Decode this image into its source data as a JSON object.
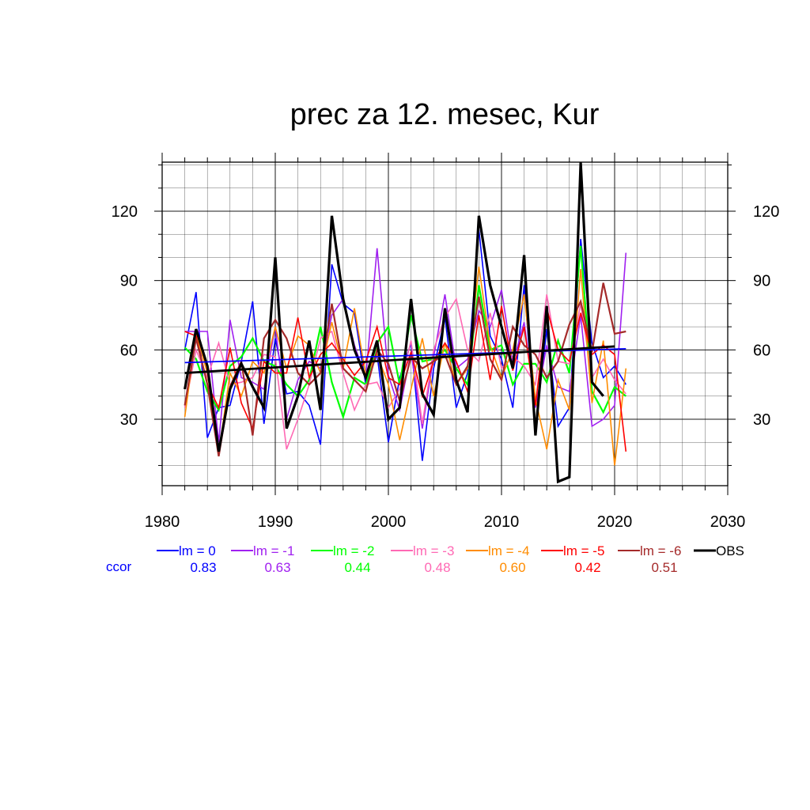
{
  "chart_data": {
    "type": "line",
    "title": "prec za 12. mesec, Kur",
    "xlabel": "",
    "ylabel": "",
    "xlim": [
      1980,
      2030
    ],
    "ylim": [
      2,
      145
    ],
    "x_ticks": [
      1980,
      1990,
      2000,
      2010,
      2020,
      2030
    ],
    "y_ticks": [
      30,
      60,
      90,
      120
    ],
    "grid": true,
    "legend_position": "bottom",
    "ccor_label": "ccor",
    "series": [
      {
        "name": "lm = 0",
        "color": "#0000ff",
        "ccor": "0.83",
        "width": 1.6,
        "x": [
          1982,
          1983,
          1984,
          1985,
          1986,
          1987,
          1988,
          1989,
          1990,
          1991,
          1992,
          1993,
          1994,
          1995,
          1996,
          1997,
          1998,
          1999,
          2000,
          2001,
          2002,
          2003,
          2004,
          2005,
          2006,
          2007,
          2008,
          2009,
          2010,
          2011,
          2012,
          2013,
          2014,
          2015,
          2016,
          2017,
          2018,
          2019,
          2020,
          2021
        ],
        "y": [
          60,
          85,
          22,
          35,
          36,
          55,
          81,
          28,
          65,
          41,
          42,
          36,
          19,
          97,
          80,
          76,
          45,
          58,
          20,
          48,
          63,
          12,
          52,
          74,
          35,
          50,
          112,
          66,
          56,
          35,
          88,
          26,
          69,
          27,
          35,
          108,
          63,
          48,
          53,
          45
        ]
      },
      {
        "name": "lm = -1",
        "color": "#a020f0",
        "ccor": "0.63",
        "width": 1.6,
        "x": [
          1982,
          1983,
          1984,
          1985,
          1986,
          1987,
          1988,
          1989,
          1990,
          1991,
          1992,
          1993,
          1994,
          1995,
          1996,
          1997,
          1998,
          1999,
          2000,
          2001,
          2002,
          2003,
          2004,
          2005,
          2006,
          2007,
          2008,
          2009,
          2010,
          2011,
          2012,
          2013,
          2014,
          2015,
          2016,
          2017,
          2018,
          2019,
          2020,
          2021
        ],
        "y": [
          68,
          68,
          68,
          20,
          73,
          48,
          46,
          43,
          70,
          30,
          47,
          55,
          52,
          75,
          82,
          62,
          48,
          104,
          49,
          34,
          59,
          26,
          57,
          84,
          52,
          56,
          77,
          70,
          86,
          54,
          72,
          35,
          62,
          44,
          42,
          75,
          27,
          30,
          36,
          102
        ]
      },
      {
        "name": "lm = -2",
        "color": "#00ff00",
        "ccor": "0.44",
        "width": 2.2,
        "x": [
          1982,
          1983,
          1984,
          1985,
          1986,
          1987,
          1988,
          1989,
          1990,
          1991,
          1992,
          1993,
          1994,
          1995,
          1996,
          1997,
          1998,
          1999,
          2000,
          2001,
          2002,
          2003,
          2004,
          2005,
          2006,
          2007,
          2008,
          2009,
          2010,
          2011,
          2012,
          2013,
          2014,
          2015,
          2016,
          2017,
          2018,
          2019,
          2020,
          2021
        ],
        "y": [
          61,
          56,
          42,
          34,
          53,
          57,
          65,
          55,
          53,
          45,
          40,
          47,
          70,
          46,
          31,
          48,
          45,
          63,
          70,
          45,
          75,
          55,
          56,
          60,
          52,
          45,
          88,
          60,
          62,
          45,
          54,
          54,
          46,
          64,
          50,
          105,
          42,
          33,
          44,
          40
        ]
      },
      {
        "name": "lm = -3",
        "color": "#ff69b4",
        "ccor": "0.48",
        "width": 1.6,
        "x": [
          1982,
          1983,
          1984,
          1985,
          1986,
          1987,
          1988,
          1989,
          1990,
          1991,
          1992,
          1993,
          1994,
          1995,
          1996,
          1997,
          1998,
          1999,
          2000,
          2001,
          2002,
          2003,
          2004,
          2005,
          2006,
          2007,
          2008,
          2009,
          2010,
          2011,
          2012,
          2013,
          2014,
          2015,
          2016,
          2017,
          2018,
          2019,
          2020,
          2021
        ],
        "y": [
          35,
          60,
          48,
          63,
          45,
          46,
          48,
          58,
          57,
          17,
          30,
          45,
          65,
          68,
          50,
          34,
          45,
          46,
          35,
          43,
          64,
          28,
          60,
          74,
          82,
          60,
          55,
          76,
          52,
          57,
          53,
          45,
          84,
          55,
          54,
          80,
          48,
          56,
          47,
          41
        ]
      },
      {
        "name": "lm = -4",
        "color": "#ff8c00",
        "ccor": "0.60",
        "width": 1.6,
        "x": [
          1982,
          1983,
          1984,
          1985,
          1986,
          1987,
          1988,
          1989,
          1990,
          1991,
          1992,
          1993,
          1994,
          1995,
          1996,
          1997,
          1998,
          1999,
          2000,
          2001,
          2002,
          2003,
          2004,
          2005,
          2006,
          2007,
          2008,
          2009,
          2010,
          2011,
          2012,
          2013,
          2014,
          2015,
          2016,
          2017,
          2018,
          2019,
          2020,
          2021
        ],
        "y": [
          31,
          67,
          50,
          15,
          50,
          40,
          55,
          50,
          70,
          52,
          66,
          62,
          50,
          72,
          52,
          78,
          49,
          58,
          45,
          21,
          43,
          65,
          40,
          63,
          45,
          52,
          96,
          62,
          48,
          60,
          84,
          39,
          17,
          47,
          34,
          95,
          37,
          64,
          10,
          52
        ]
      },
      {
        "name": "lm = -5",
        "color": "#ff0000",
        "ccor": "0.42",
        "width": 1.6,
        "x": [
          1982,
          1983,
          1984,
          1985,
          1986,
          1987,
          1988,
          1989,
          1990,
          1991,
          1992,
          1993,
          1994,
          1995,
          1996,
          1997,
          1998,
          1999,
          2000,
          2001,
          2002,
          2003,
          2004,
          2005,
          2006,
          2007,
          2008,
          2009,
          2010,
          2011,
          2012,
          2013,
          2014,
          2015,
          2016,
          2017,
          2018,
          2019,
          2020,
          2021
        ],
        "y": [
          68,
          66,
          45,
          35,
          61,
          37,
          26,
          55,
          50,
          50,
          74,
          48,
          58,
          63,
          56,
          49,
          55,
          70,
          48,
          45,
          59,
          40,
          55,
          63,
          55,
          42,
          75,
          47,
          79,
          51,
          70,
          36,
          78,
          60,
          55,
          76,
          58,
          62,
          58,
          16
        ]
      },
      {
        "name": "lm = -6",
        "color": "#a52a2a",
        "ccor": "0.51",
        "width": 2.2,
        "x": [
          1982,
          1983,
          1984,
          1985,
          1986,
          1987,
          1988,
          1989,
          1990,
          1991,
          1992,
          1993,
          1994,
          1995,
          1996,
          1997,
          1998,
          1999,
          2000,
          2001,
          2002,
          2003,
          2004,
          2005,
          2006,
          2007,
          2008,
          2009,
          2010,
          2011,
          2012,
          2013,
          2014,
          2015,
          2016,
          2017,
          2018,
          2019,
          2020,
          2021
        ],
        "y": [
          36,
          65,
          45,
          14,
          44,
          55,
          23,
          65,
          73,
          65,
          50,
          45,
          50,
          80,
          52,
          47,
          42,
          60,
          54,
          38,
          57,
          52,
          55,
          58,
          45,
          53,
          83,
          56,
          47,
          70,
          62,
          58,
          48,
          55,
          71,
          81,
          59,
          89,
          67,
          68
        ]
      },
      {
        "name": "OBS",
        "color": "#000000",
        "ccor": "",
        "width": 3.2,
        "x": [
          1982,
          1983,
          1984,
          1985,
          1986,
          1987,
          1988,
          1989,
          1990,
          1991,
          1992,
          1993,
          1994,
          1995,
          1996,
          1997,
          1998,
          1999,
          2000,
          2001,
          2002,
          2003,
          2004,
          2005,
          2006,
          2007,
          2008,
          2009,
          2010,
          2011,
          2012,
          2013,
          2014,
          2015,
          2016,
          2017,
          2018,
          2019
        ],
        "y": [
          43,
          69,
          53,
          16,
          43,
          54,
          44,
          35,
          100,
          26,
          40,
          64,
          34,
          118,
          82,
          60,
          48,
          64,
          30,
          35,
          82,
          41,
          32,
          78,
          47,
          33,
          118,
          88,
          70,
          52,
          101,
          23,
          79,
          3,
          5,
          141,
          46,
          40
        ]
      }
    ],
    "trend_lines": [
      {
        "series": "lm = 0",
        "color": "#0000ff",
        "width": 1.8,
        "x": [
          1982,
          2021
        ],
        "y": [
          54.5,
          60.5
        ]
      },
      {
        "series": "OBS",
        "color": "#000000",
        "width": 2.8,
        "x": [
          1982,
          2020
        ],
        "y": [
          50,
          61.5
        ]
      }
    ]
  }
}
